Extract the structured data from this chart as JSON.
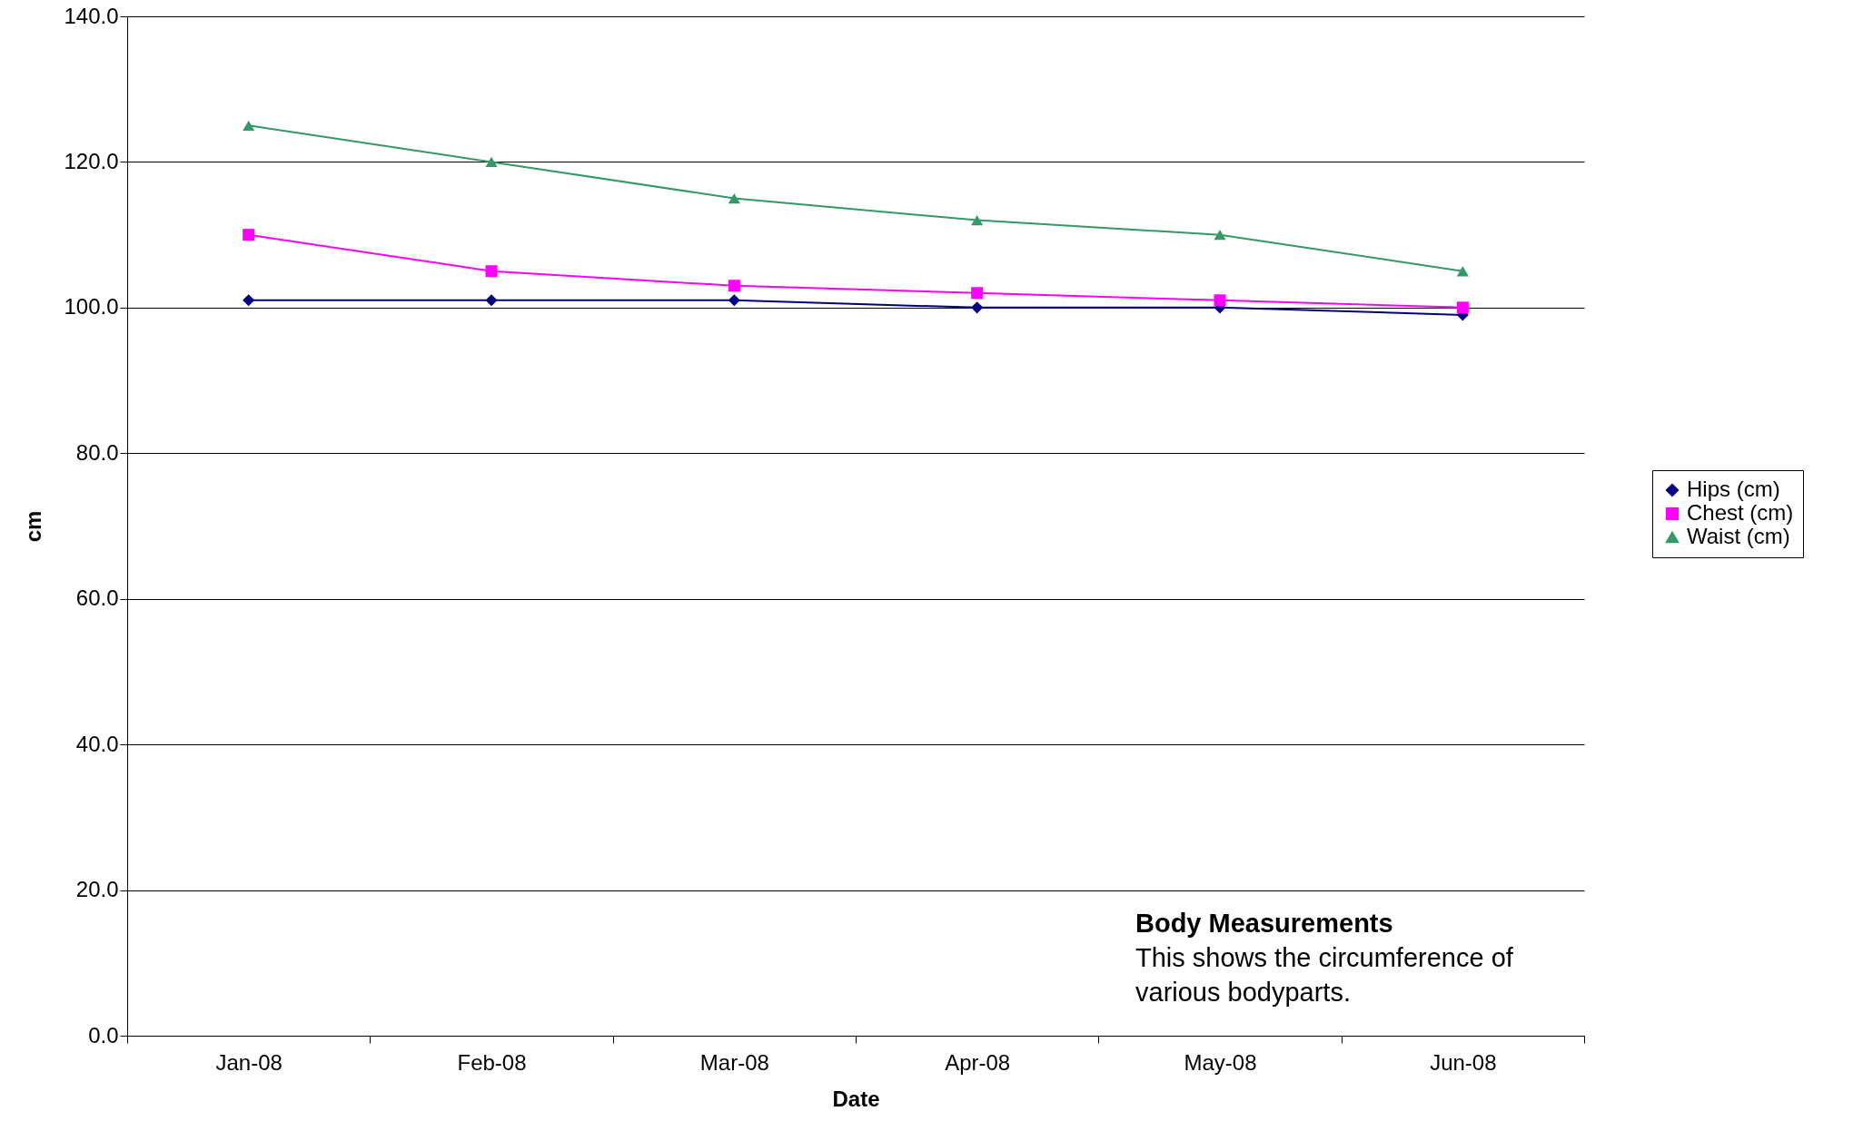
{
  "chart_data": {
    "type": "line",
    "xlabel": "Date",
    "ylabel": "cm",
    "categories": [
      "Jan-08",
      "Feb-08",
      "Mar-08",
      "Apr-08",
      "May-08",
      "Jun-08"
    ],
    "series": [
      {
        "name": "Hips (cm)",
        "color": "#000080",
        "marker": "diamond",
        "values": [
          101,
          101,
          101,
          100,
          100,
          99
        ]
      },
      {
        "name": "Chest (cm)",
        "color": "#ff00ff",
        "marker": "square",
        "values": [
          110,
          105,
          103,
          102,
          101,
          100
        ]
      },
      {
        "name": "Waist (cm)",
        "color": "#339966",
        "marker": "triangle",
        "values": [
          125,
          120,
          115,
          112,
          110,
          105
        ]
      }
    ],
    "ylim": [
      0,
      140
    ],
    "yticks": [
      {
        "value": 0,
        "label": "0.0"
      },
      {
        "value": 20,
        "label": "20.0"
      },
      {
        "value": 40,
        "label": "40.0"
      },
      {
        "value": 60,
        "label": "60.0"
      },
      {
        "value": 80,
        "label": "80.0"
      },
      {
        "value": 100,
        "label": "100.0"
      },
      {
        "value": 120,
        "label": "120.0"
      },
      {
        "value": 140,
        "label": "140.0"
      }
    ],
    "grid": "y",
    "legend": "right",
    "line_style": "solid",
    "annotations": [
      "Body Measurements",
      "This shows the circumference of various bodyparts."
    ]
  }
}
